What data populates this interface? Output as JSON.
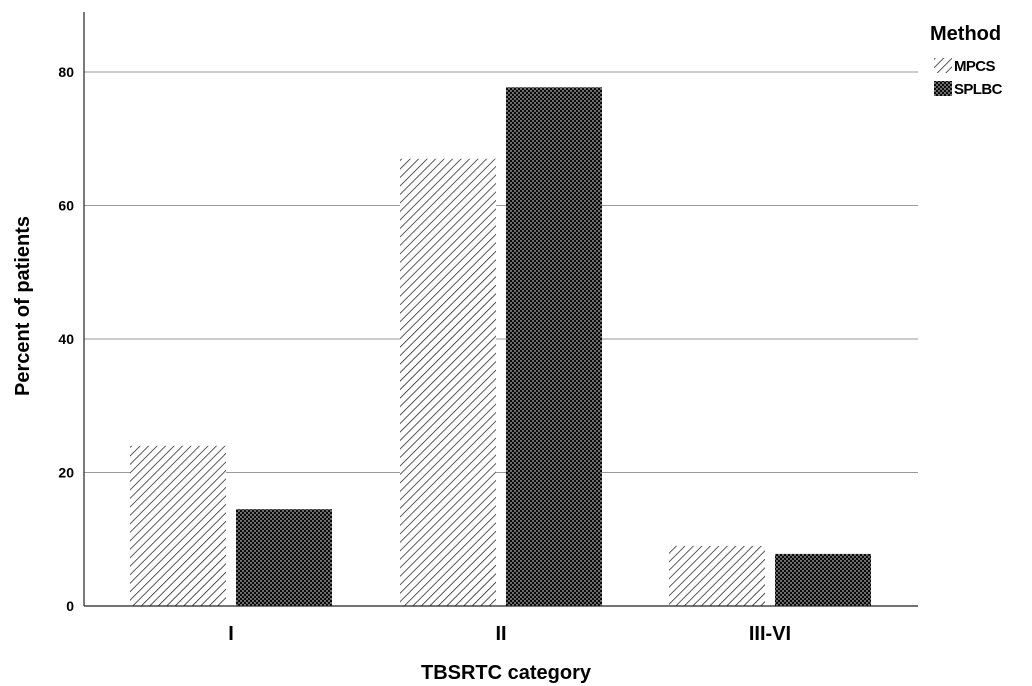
{
  "chart_data": {
    "type": "bar",
    "title": "",
    "xlabel": "TBSRTC category",
    "ylabel": "Percent of patients",
    "categories": [
      "I",
      "II",
      "III-VI"
    ],
    "series": [
      {
        "name": "MPCS",
        "values": [
          24.0,
          67.0,
          9.0
        ],
        "pattern": "diagonal-hatch"
      },
      {
        "name": "SPLBC",
        "values": [
          14.5,
          77.7,
          7.8
        ],
        "pattern": "dotted-dark"
      }
    ],
    "ylim": [
      0,
      90
    ],
    "yticks": [
      0,
      20,
      40,
      60,
      80
    ],
    "grid": "horizontal",
    "legend_title": "Method",
    "legend_position": "top-right"
  }
}
